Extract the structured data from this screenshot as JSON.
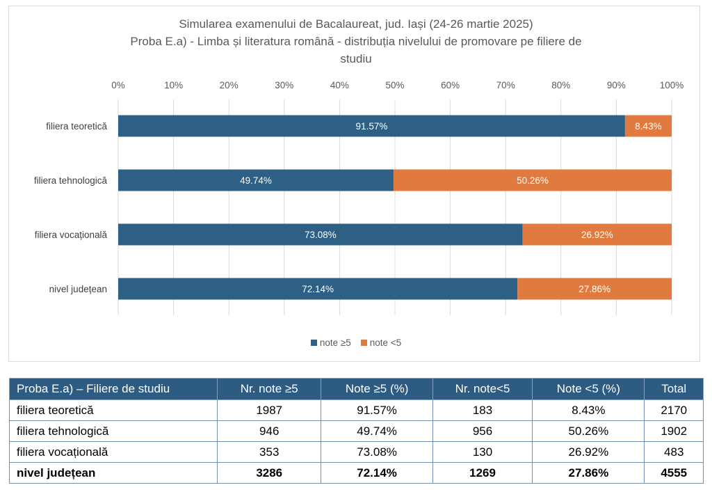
{
  "chart_data": {
    "type": "bar",
    "orientation": "horizontal",
    "stacked": "100%",
    "title_lines": [
      "Simularea examenului de Bacalaureat, jud. Iași (24-26 martie 2025)",
      "Proba E.a) - Limba și literatura română - distribuția nivelului de promovare pe filiere de",
      "studiu"
    ],
    "categories": [
      "filiera teoretică",
      "filiera tehnologică",
      "filiera vocațională",
      "nivel județean"
    ],
    "series": [
      {
        "name": "note ≥5",
        "color": "#2e5f84",
        "values": [
          91.57,
          49.74,
          73.08,
          72.14
        ],
        "labels": [
          "91.57%",
          "49.74%",
          "73.08%",
          "72.14%"
        ]
      },
      {
        "name": "note <5",
        "color": "#e07a3f",
        "values": [
          8.43,
          50.26,
          26.92,
          27.86
        ],
        "labels": [
          "8.43%",
          "50.26%",
          "26.92%",
          "27.86%"
        ]
      }
    ],
    "xlim": [
      0,
      100
    ],
    "x_ticks": [
      "0%",
      "10%",
      "20%",
      "30%",
      "40%",
      "50%",
      "60%",
      "70%",
      "80%",
      "90%",
      "100%"
    ],
    "x_axis_position": "top",
    "grid": true,
    "legend_position": "bottom"
  },
  "table": {
    "headers": [
      "Proba E.a) – Filiere de studiu",
      "Nr. note ≥5",
      "Note ≥5 (%)",
      "Nr. note<5",
      "Note <5 (%)",
      "Total"
    ],
    "rows": [
      [
        "filiera teoretică",
        "1987",
        "91.57%",
        "183",
        "8.43%",
        "2170"
      ],
      [
        "filiera tehnologică",
        "946",
        "49.74%",
        "956",
        "50.26%",
        "1902"
      ],
      [
        "filiera vocațională",
        "353",
        "73.08%",
        "130",
        "26.92%",
        "483"
      ],
      [
        "nivel județean",
        "3286",
        "72.14%",
        "1269",
        "27.86%",
        "4555"
      ]
    ]
  }
}
